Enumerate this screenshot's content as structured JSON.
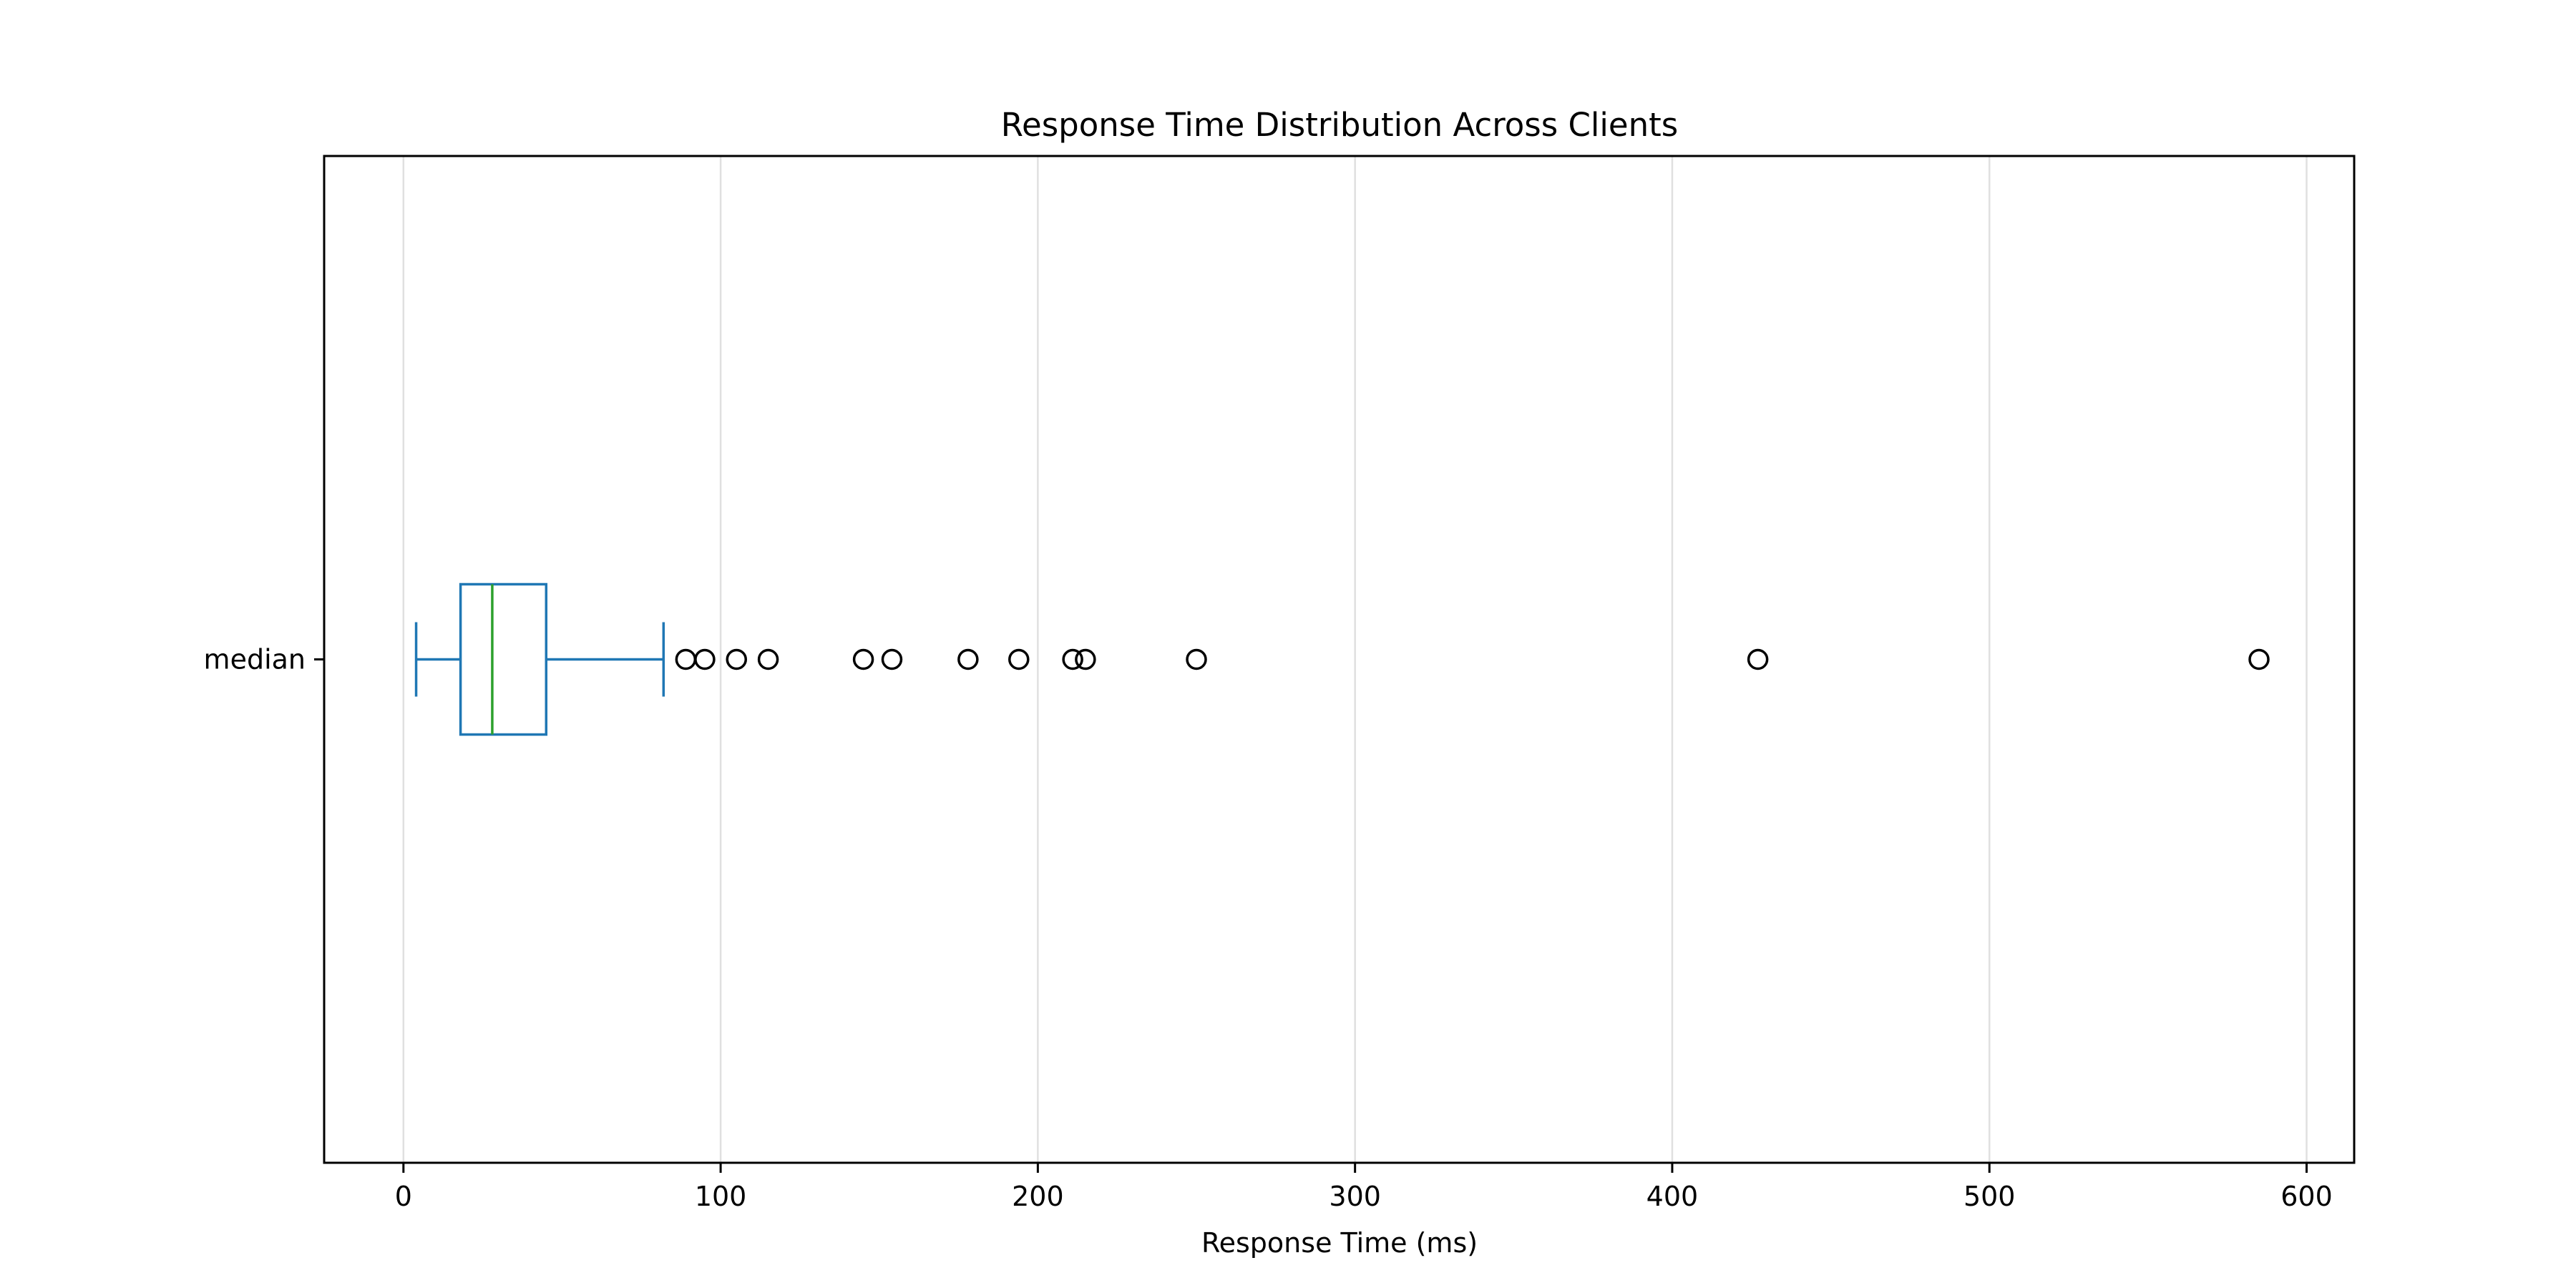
{
  "chart_data": {
    "type": "box",
    "title": "Response Time Distribution Across Clients",
    "xlabel": "Response Time (ms)",
    "ylabel": "",
    "orientation": "horizontal",
    "xlim": [
      -25,
      615
    ],
    "xticks": [
      0,
      100,
      200,
      300,
      400,
      500,
      600
    ],
    "grid": {
      "x": true,
      "y": false
    },
    "categories": [
      "median"
    ],
    "boxes": [
      {
        "name": "median",
        "whisker_low": 4,
        "q1": 18,
        "median": 28,
        "q3": 45,
        "whisker_high": 82,
        "outliers": [
          89,
          95,
          105,
          115,
          145,
          154,
          178,
          194,
          211,
          215,
          250,
          427,
          585
        ]
      }
    ],
    "colors": {
      "box": "#1f77b4",
      "median": "#2ca02c",
      "outlier_edge": "#000000",
      "grid": "#e0e0e0",
      "axes": "#000000"
    }
  }
}
